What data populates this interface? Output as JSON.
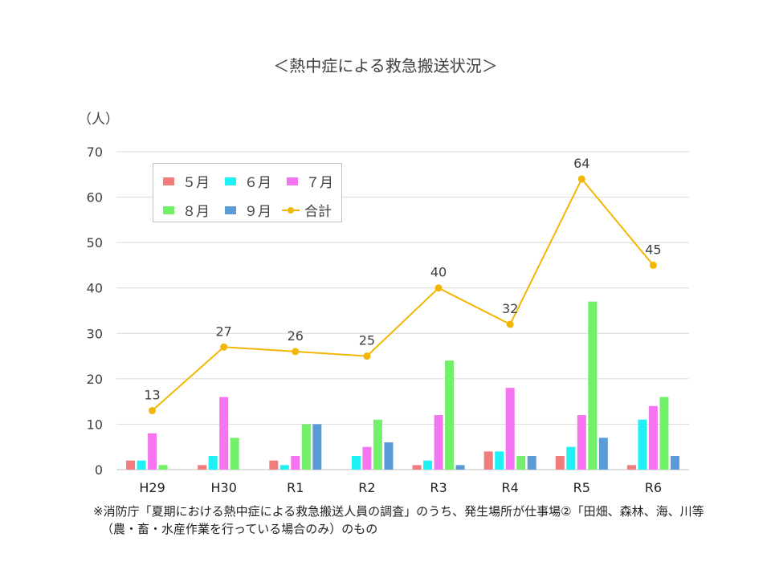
{
  "title": "＜熱中症による救急搬送状況＞",
  "unit_label": "（人）",
  "note": {
    "line1": "※消防庁「夏期における熱中症による救急搬送人員の調査」のうち、発生場所が仕事場②「田畑、森林、海、川等",
    "line2": "（農・畜・水産作業を行っている場合のみ）のもの"
  },
  "chart_data": {
    "type": "bar",
    "title": "＜熱中症による救急搬送状況＞",
    "ylabel": "（人）",
    "categories": [
      "H29",
      "H30",
      "R1",
      "R2",
      "R3",
      "R4",
      "R5",
      "R6"
    ],
    "ylim": [
      0,
      70
    ],
    "yticks": [
      0,
      10,
      20,
      30,
      40,
      50,
      60,
      70
    ],
    "grid": true,
    "legend_position": "top-left",
    "series": [
      {
        "name": "５月",
        "kind": "bar",
        "color": "#f07c7c",
        "values": [
          2,
          1,
          2,
          0,
          1,
          4,
          3,
          1
        ]
      },
      {
        "name": "６月",
        "kind": "bar",
        "color": "#1ff0f5",
        "values": [
          2,
          3,
          1,
          3,
          2,
          4,
          5,
          11
        ]
      },
      {
        "name": "７月",
        "kind": "bar",
        "color": "#f574f0",
        "values": [
          8,
          16,
          3,
          5,
          12,
          18,
          12,
          14
        ]
      },
      {
        "name": "８月",
        "kind": "bar",
        "color": "#72f06a",
        "values": [
          1,
          7,
          10,
          11,
          24,
          3,
          37,
          16
        ]
      },
      {
        "name": "９月",
        "kind": "bar",
        "color": "#5b9bd5",
        "values": [
          0,
          0,
          10,
          6,
          1,
          3,
          7,
          3
        ]
      },
      {
        "name": "合計",
        "kind": "line",
        "color": "#f2b705",
        "values": [
          13,
          27,
          26,
          25,
          40,
          32,
          64,
          45
        ]
      }
    ]
  }
}
